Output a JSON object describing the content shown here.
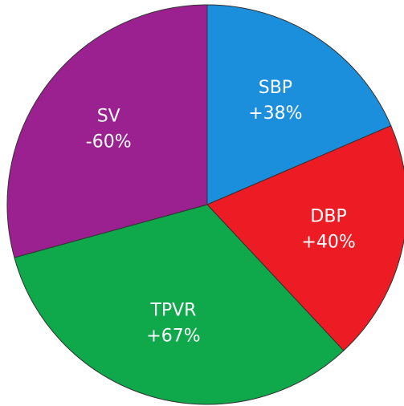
{
  "chart_data": {
    "type": "pie",
    "categories": [
      "SBP",
      "DBP",
      "TPVR",
      "SV"
    ],
    "values": [
      38,
      40,
      67,
      -60
    ],
    "value_labels": [
      "+38%",
      "+40%",
      "+67%",
      "-60%"
    ],
    "colors": [
      "#1b8fdb",
      "#ed1c24",
      "#0fa84b",
      "#9b2190"
    ]
  }
}
